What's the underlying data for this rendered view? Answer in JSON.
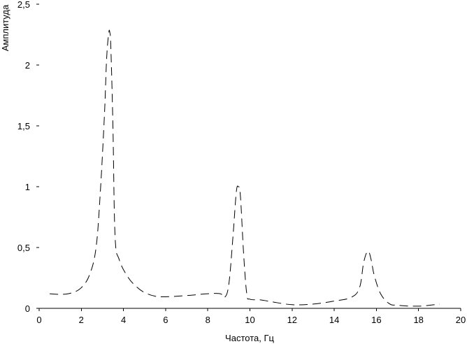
{
  "chart_data": {
    "type": "line",
    "title": "",
    "xlabel": "Частота, Гц",
    "ylabel": "Амплитуда",
    "xlim": [
      0,
      20
    ],
    "ylim": [
      0,
      2.5
    ],
    "x_ticks": [
      "0",
      "2",
      "4",
      "6",
      "8",
      "10",
      "12",
      "14",
      "16",
      "18",
      "20"
    ],
    "y_ticks": [
      "0",
      "0,5",
      "1",
      "1,5",
      "2",
      "2,5"
    ],
    "grid": false,
    "legend": "none",
    "line_color": "#000000",
    "line_style": "dashed",
    "series": [
      {
        "x": [
          0.5,
          1.0,
          1.5,
          2.0,
          2.4,
          2.7,
          2.9,
          3.1,
          3.2,
          3.3,
          3.35,
          3.4,
          3.5,
          3.6,
          3.8,
          4.2,
          4.6,
          5.0,
          5.5,
          6.0,
          7.0,
          8.0,
          8.6,
          8.8,
          9.0,
          9.2,
          9.35,
          9.45,
          9.55,
          9.7,
          9.85,
          10.0,
          10.5,
          11.0,
          12.0,
          13.0,
          14.0,
          14.8,
          15.2,
          15.4,
          15.6,
          15.75,
          15.9,
          16.2,
          16.6,
          17.0,
          18.0,
          19.0
        ],
        "y": [
          0.12,
          0.115,
          0.125,
          0.17,
          0.28,
          0.5,
          0.95,
          1.6,
          2.05,
          2.26,
          2.27,
          2.15,
          1.5,
          0.6,
          0.4,
          0.26,
          0.18,
          0.13,
          0.1,
          0.095,
          0.105,
          0.12,
          0.12,
          0.09,
          0.2,
          0.6,
          0.95,
          1.0,
          0.92,
          0.45,
          0.12,
          0.075,
          0.07,
          0.055,
          0.03,
          0.035,
          0.06,
          0.09,
          0.17,
          0.38,
          0.47,
          0.4,
          0.27,
          0.12,
          0.04,
          0.025,
          0.018,
          0.035
        ]
      }
    ]
  }
}
